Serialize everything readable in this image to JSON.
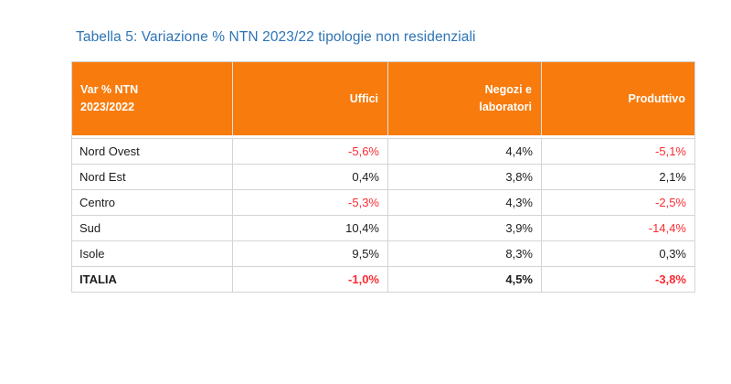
{
  "colors": {
    "header-bg": "#F87B0D",
    "header-text": "#FFFFFF",
    "title": "#2E74B5",
    "negative": "#F92D33",
    "text": "#1C1C1C",
    "border": "#D4D4D4"
  },
  "title": "Tabella 5: Variazione % NTN 2023/22 tipologie non residenziali",
  "table": {
    "header": {
      "col0": "Var % NTN\n2023/2022",
      "col1": "Uffici",
      "col2": "Negozi e\nlaboratori",
      "col3": "Produttivo"
    },
    "rows": [
      {
        "region": "Nord Ovest",
        "uffici": "-5,6%",
        "negozi": "4,4%",
        "produttivo": "-5,1%"
      },
      {
        "region": "Nord Est",
        "uffici": "0,4%",
        "negozi": "3,8%",
        "produttivo": "2,1%"
      },
      {
        "region": "Centro",
        "uffici": "-5,3%",
        "negozi": "4,3%",
        "produttivo": "-2,5%"
      },
      {
        "region": "Sud",
        "uffici": "10,4%",
        "negozi": "3,9%",
        "produttivo": "-14,4%"
      },
      {
        "region": "Isole",
        "uffici": "9,5%",
        "negozi": "8,3%",
        "produttivo": "0,3%"
      },
      {
        "region": "ITALIA",
        "uffici": "-1,0%",
        "negozi": "4,5%",
        "produttivo": "-3,8%"
      }
    ]
  }
}
